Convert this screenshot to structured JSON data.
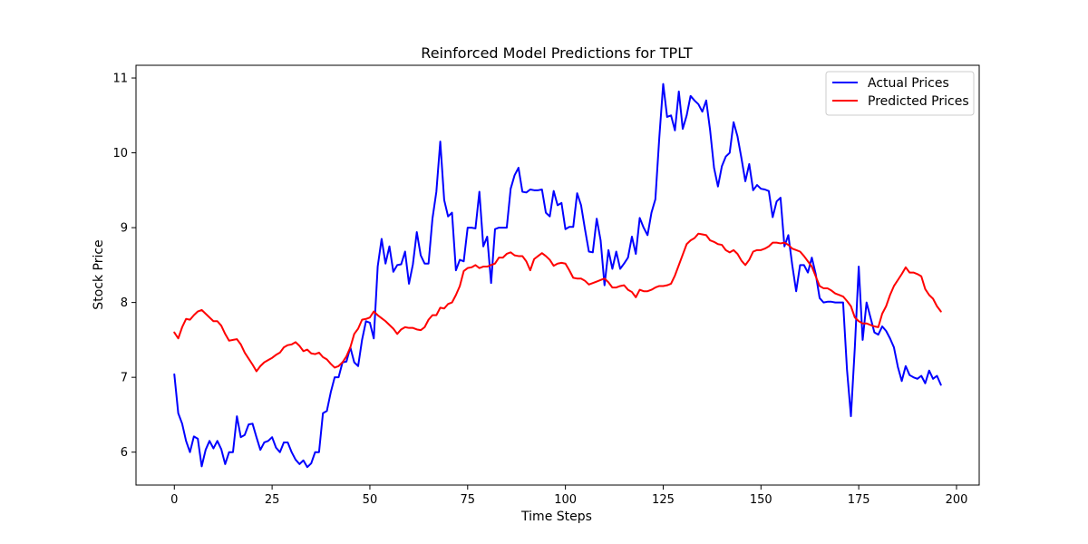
{
  "chart_data": {
    "type": "line",
    "title": "Reinforced Model Predictions for TPLT",
    "xlabel": "Time Steps",
    "ylabel": "Stock Price",
    "xlim": [
      -9.8,
      205.8
    ],
    "ylim": [
      5.56,
      11.17
    ],
    "xticks": [
      0,
      25,
      50,
      75,
      100,
      125,
      150,
      175,
      200
    ],
    "yticks": [
      6,
      7,
      8,
      9,
      10,
      11
    ],
    "grid": false,
    "legend_position": "top-right",
    "series": [
      {
        "name": "Actual Prices",
        "color": "#0000ff",
        "x": [
          0,
          1,
          2,
          3,
          4,
          5,
          6,
          7,
          8,
          9,
          10,
          11,
          12,
          13,
          14,
          15,
          16,
          17,
          18,
          19,
          20,
          21,
          22,
          23,
          24,
          25,
          26,
          27,
          28,
          29,
          30,
          31,
          32,
          33,
          34,
          35,
          36,
          37,
          38,
          39,
          40,
          41,
          42,
          43,
          44,
          45,
          46,
          47,
          48,
          49,
          50,
          51,
          52,
          53,
          54,
          55,
          56,
          57,
          58,
          59,
          60,
          61,
          62,
          63,
          64,
          65,
          66,
          67,
          68,
          69,
          70,
          71,
          72,
          73,
          74,
          75,
          76,
          77,
          78,
          79,
          80,
          81,
          82,
          83,
          84,
          85,
          86,
          87,
          88,
          89,
          90,
          91,
          92,
          93,
          94,
          95,
          96,
          97,
          98,
          99,
          100,
          101,
          102,
          103,
          104,
          105,
          106,
          107,
          108,
          109,
          110,
          111,
          112,
          113,
          114,
          115,
          116,
          117,
          118,
          119,
          120,
          121,
          122,
          123,
          124,
          125,
          126,
          127,
          128,
          129,
          130,
          131,
          132,
          133,
          134,
          135,
          136,
          137,
          138,
          139,
          140,
          141,
          142,
          143,
          144,
          145,
          146,
          147,
          148,
          149,
          150,
          151,
          152,
          153,
          154,
          155,
          156,
          157,
          158,
          159,
          160,
          161,
          162,
          163,
          164,
          165,
          166,
          167,
          168,
          169,
          170,
          171,
          172,
          173,
          174,
          175,
          176,
          177,
          178,
          179,
          180,
          181,
          182,
          183,
          184,
          185,
          186,
          187,
          188,
          189,
          190,
          191,
          192,
          193,
          194,
          195,
          196
        ],
        "values": [
          7.04,
          6.52,
          6.38,
          6.15,
          6.0,
          6.21,
          6.18,
          5.81,
          6.03,
          6.15,
          6.05,
          6.15,
          6.04,
          5.84,
          6.0,
          6.0,
          6.48,
          6.2,
          6.23,
          6.37,
          6.38,
          6.2,
          6.03,
          6.13,
          6.15,
          6.2,
          6.06,
          6.0,
          6.13,
          6.13,
          6.0,
          5.9,
          5.84,
          5.89,
          5.8,
          5.85,
          6.0,
          6.0,
          6.52,
          6.55,
          6.8,
          7.0,
          7.0,
          7.2,
          7.21,
          7.4,
          7.2,
          7.15,
          7.5,
          7.75,
          7.73,
          7.52,
          8.48,
          8.85,
          8.52,
          8.75,
          8.41,
          8.5,
          8.51,
          8.68,
          8.25,
          8.51,
          8.94,
          8.63,
          8.52,
          8.52,
          9.12,
          9.48,
          10.15,
          9.37,
          9.15,
          9.2,
          8.43,
          8.57,
          8.55,
          9.0,
          9.0,
          8.99,
          9.48,
          8.75,
          8.88,
          8.26,
          8.98,
          9.0,
          9.0,
          9.0,
          9.52,
          9.7,
          9.8,
          9.48,
          9.47,
          9.51,
          9.5,
          9.5,
          9.51,
          9.2,
          9.15,
          9.49,
          9.3,
          9.33,
          8.98,
          9.01,
          9.01,
          9.46,
          9.3,
          8.98,
          8.68,
          8.67,
          9.12,
          8.83,
          8.23,
          8.7,
          8.45,
          8.68,
          8.45,
          8.52,
          8.6,
          8.88,
          8.65,
          9.13,
          9.0,
          8.9,
          9.2,
          9.38,
          10.2,
          10.92,
          10.48,
          10.5,
          10.3,
          10.82,
          10.32,
          10.5,
          10.76,
          10.7,
          10.65,
          10.55,
          10.7,
          10.3,
          9.8,
          9.55,
          9.82,
          9.95,
          10.0,
          10.41,
          10.22,
          9.93,
          9.62,
          9.85,
          9.5,
          9.57,
          9.52,
          9.51,
          9.49,
          9.14,
          9.35,
          9.4,
          8.75,
          8.9,
          8.5,
          8.15,
          8.5,
          8.5,
          8.4,
          8.6,
          8.38,
          8.06,
          8.0,
          8.01,
          8.01,
          8.0,
          8.0,
          8.0,
          7.1,
          6.48,
          7.4,
          8.48,
          7.5,
          8.0,
          7.8,
          7.6,
          7.57,
          7.68,
          7.62,
          7.52,
          7.4,
          7.14,
          6.95,
          7.15,
          7.03,
          7.0,
          6.98,
          7.02,
          6.92,
          7.09,
          6.98,
          7.02,
          6.9
        ]
      },
      {
        "name": "Predicted Prices",
        "color": "#ff0000",
        "x": [
          0,
          1,
          2,
          3,
          4,
          5,
          6,
          7,
          8,
          9,
          10,
          11,
          12,
          13,
          14,
          15,
          16,
          17,
          18,
          19,
          20,
          21,
          22,
          23,
          24,
          25,
          26,
          27,
          28,
          29,
          30,
          31,
          32,
          33,
          34,
          35,
          36,
          37,
          38,
          39,
          40,
          41,
          42,
          43,
          44,
          45,
          46,
          47,
          48,
          49,
          50,
          51,
          52,
          53,
          54,
          55,
          56,
          57,
          58,
          59,
          60,
          61,
          62,
          63,
          64,
          65,
          66,
          67,
          68,
          69,
          70,
          71,
          72,
          73,
          74,
          75,
          76,
          77,
          78,
          79,
          80,
          81,
          82,
          83,
          84,
          85,
          86,
          87,
          88,
          89,
          90,
          91,
          92,
          93,
          94,
          95,
          96,
          97,
          98,
          99,
          100,
          101,
          102,
          103,
          104,
          105,
          106,
          107,
          108,
          109,
          110,
          111,
          112,
          113,
          114,
          115,
          116,
          117,
          118,
          119,
          120,
          121,
          122,
          123,
          124,
          125,
          126,
          127,
          128,
          129,
          130,
          131,
          132,
          133,
          134,
          135,
          136,
          137,
          138,
          139,
          140,
          141,
          142,
          143,
          144,
          145,
          146,
          147,
          148,
          149,
          150,
          151,
          152,
          153,
          154,
          155,
          156,
          157,
          158,
          159,
          160,
          161,
          162,
          163,
          164,
          165,
          166,
          167,
          168,
          169,
          170,
          171,
          172,
          173,
          174,
          175,
          176,
          177,
          178,
          179,
          180,
          181,
          182,
          183,
          184,
          185,
          186,
          187,
          188,
          189,
          190,
          191,
          192,
          193,
          194,
          195,
          196
        ],
        "values": [
          7.6,
          7.52,
          7.67,
          7.78,
          7.77,
          7.83,
          7.88,
          7.9,
          7.85,
          7.8,
          7.75,
          7.75,
          7.69,
          7.58,
          7.49,
          7.5,
          7.51,
          7.44,
          7.33,
          7.25,
          7.17,
          7.08,
          7.15,
          7.2,
          7.23,
          7.26,
          7.3,
          7.33,
          7.4,
          7.43,
          7.44,
          7.47,
          7.42,
          7.35,
          7.37,
          7.32,
          7.31,
          7.33,
          7.27,
          7.24,
          7.18,
          7.13,
          7.15,
          7.2,
          7.28,
          7.4,
          7.58,
          7.65,
          7.77,
          7.78,
          7.8,
          7.88,
          7.83,
          7.79,
          7.75,
          7.7,
          7.65,
          7.58,
          7.64,
          7.67,
          7.66,
          7.66,
          7.64,
          7.63,
          7.67,
          7.77,
          7.83,
          7.83,
          7.93,
          7.92,
          7.98,
          8.0,
          8.1,
          8.22,
          8.42,
          8.46,
          8.47,
          8.5,
          8.46,
          8.48,
          8.48,
          8.5,
          8.52,
          8.6,
          8.6,
          8.65,
          8.67,
          8.63,
          8.62,
          8.62,
          8.55,
          8.43,
          8.58,
          8.62,
          8.66,
          8.62,
          8.57,
          8.49,
          8.52,
          8.53,
          8.52,
          8.43,
          8.33,
          8.32,
          8.32,
          8.29,
          8.24,
          8.26,
          8.28,
          8.3,
          8.32,
          8.27,
          8.2,
          8.2,
          8.22,
          8.23,
          8.17,
          8.14,
          8.07,
          8.17,
          8.15,
          8.15,
          8.17,
          8.2,
          8.22,
          8.22,
          8.23,
          8.25,
          8.36,
          8.5,
          8.64,
          8.78,
          8.83,
          8.86,
          8.92,
          8.91,
          8.9,
          8.83,
          8.81,
          8.78,
          8.77,
          8.7,
          8.67,
          8.7,
          8.65,
          8.56,
          8.5,
          8.57,
          8.68,
          8.7,
          8.7,
          8.72,
          8.75,
          8.8,
          8.8,
          8.79,
          8.8,
          8.77,
          8.72,
          8.7,
          8.68,
          8.62,
          8.55,
          8.48,
          8.35,
          8.22,
          8.19,
          8.19,
          8.16,
          8.12,
          8.1,
          8.08,
          8.02,
          7.95,
          7.8,
          7.75,
          7.72,
          7.72,
          7.7,
          7.68,
          7.67,
          7.85,
          7.95,
          8.1,
          8.22,
          8.3,
          8.38,
          8.47,
          8.4,
          8.4,
          8.38,
          8.35,
          8.18,
          8.1,
          8.05,
          7.95,
          7.88
        ]
      }
    ]
  }
}
